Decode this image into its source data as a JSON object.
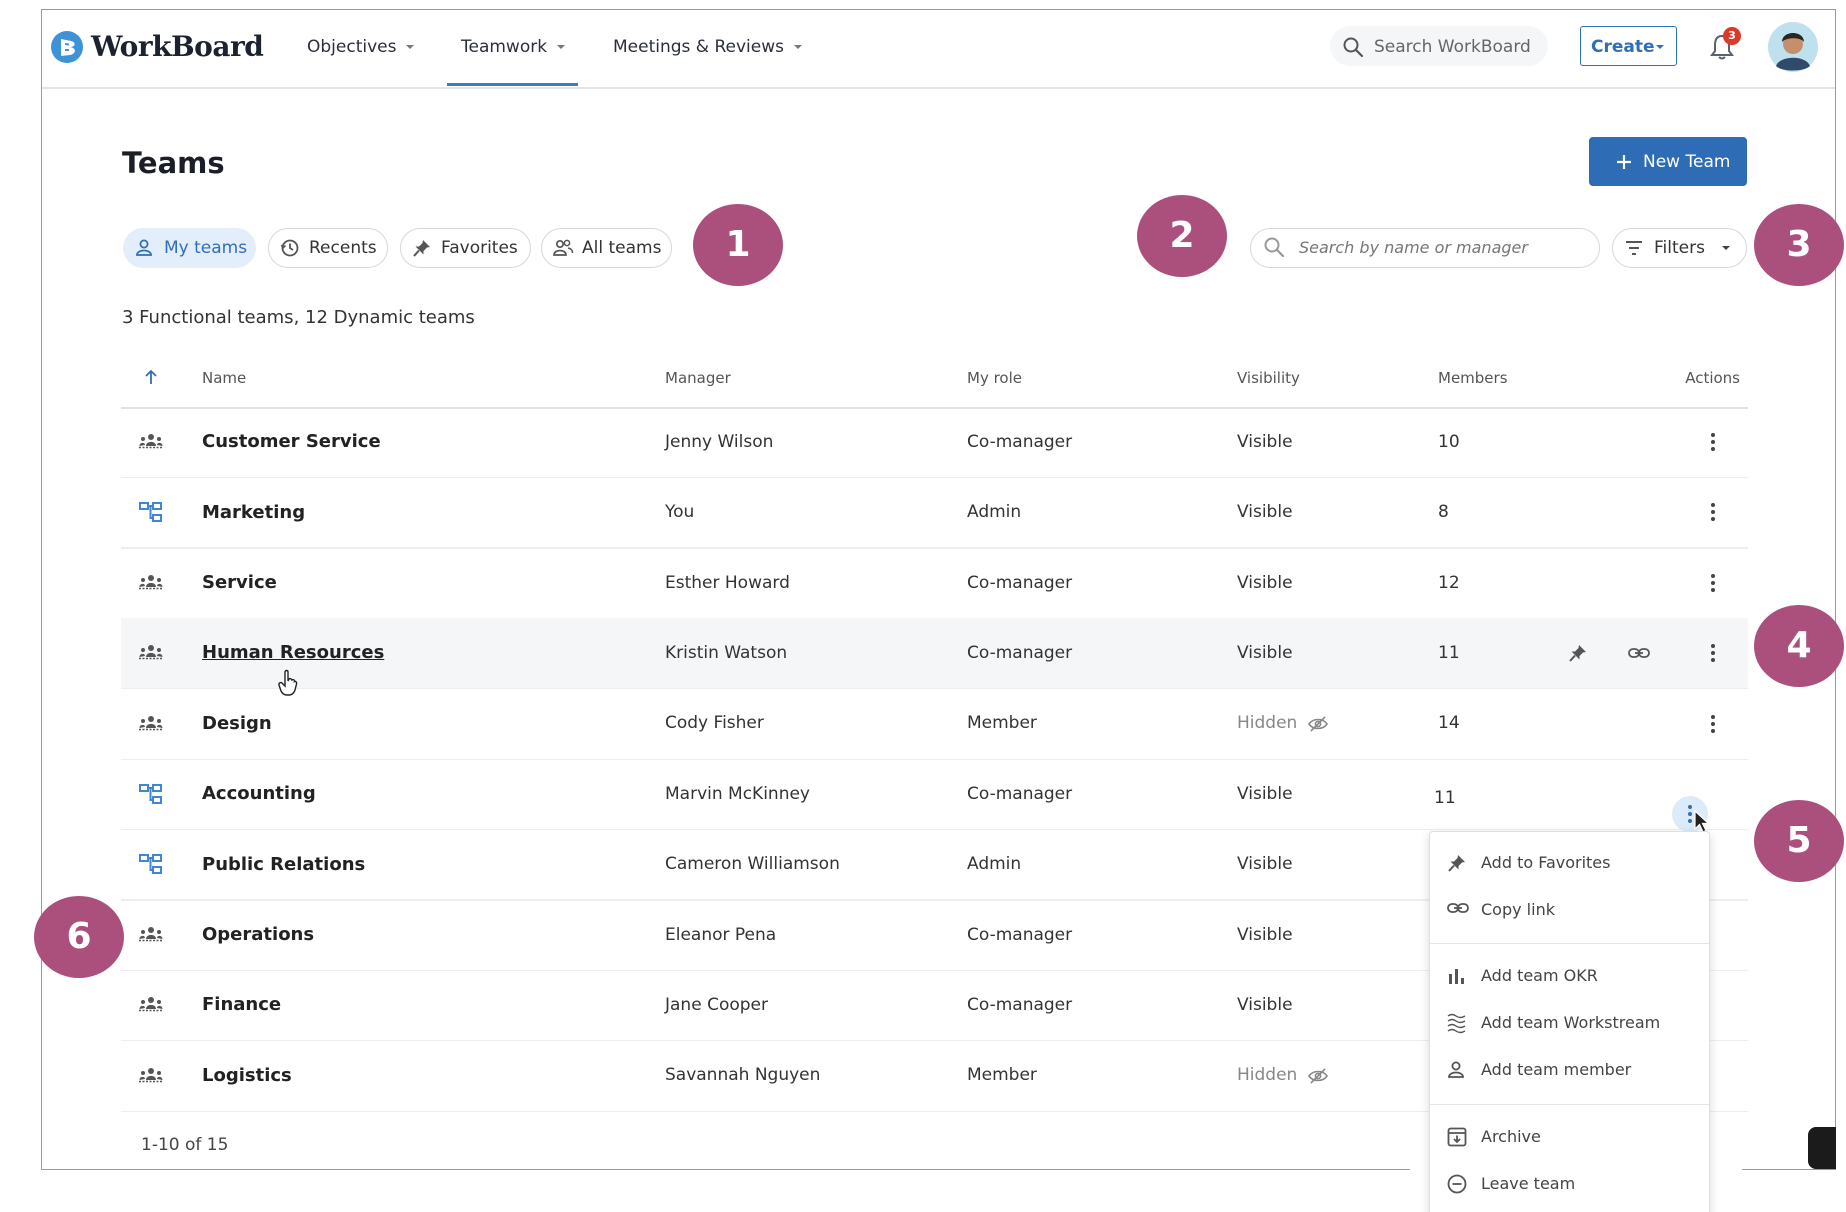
{
  "nav": {
    "logo": "WorkBoard",
    "menu": [
      "Objectives",
      "Teamwork",
      "Meetings & Reviews"
    ],
    "search": "Search WorkBoard",
    "create": "Create",
    "notifications": "3"
  },
  "page": {
    "title": "Teams",
    "new_team": "New Team",
    "tabs": [
      "My teams",
      "Recents",
      "Favorites",
      "All teams"
    ],
    "search_placeholder": "Search by name or manager",
    "filters": "Filters",
    "summary": "3 Functional teams, 12 Dynamic teams"
  },
  "table": {
    "headers": [
      "Name",
      "Manager",
      "My role",
      "Visibility",
      "Members",
      "Actions"
    ],
    "rows": [
      {
        "name": "Customer Service",
        "manager": "Jenny Wilson",
        "role": "Co-manager",
        "visibility": "Visible",
        "members": "10",
        "functional": false,
        "hidden": false
      },
      {
        "name": "Marketing",
        "manager": "You",
        "role": "Admin",
        "visibility": "Visible",
        "members": "8",
        "functional": true,
        "hidden": false
      },
      {
        "name": "Service",
        "manager": "Esther Howard",
        "role": "Co-manager",
        "visibility": "Visible",
        "members": "12",
        "functional": false,
        "hidden": false
      },
      {
        "name": "Human Resources",
        "manager": "Kristin Watson",
        "role": "Co-manager",
        "visibility": "Visible",
        "members": "11",
        "functional": false,
        "hidden": false
      },
      {
        "name": "Design",
        "manager": "Cody Fisher",
        "role": "Member",
        "visibility": "Hidden",
        "members": "14",
        "functional": false,
        "hidden": true
      },
      {
        "name": "Accounting",
        "manager": "Marvin McKinney",
        "role": "Co-manager",
        "visibility": "Visible",
        "members": "11",
        "functional": true,
        "hidden": false
      },
      {
        "name": "Public Relations",
        "manager": "Cameron Williamson",
        "role": "Admin",
        "visibility": "Visible",
        "members": "",
        "functional": true,
        "hidden": false
      },
      {
        "name": "Operations",
        "manager": "Eleanor Pena",
        "role": "Co-manager",
        "visibility": "Visible",
        "members": "",
        "functional": false,
        "hidden": false
      },
      {
        "name": "Finance",
        "manager": "Jane Cooper",
        "role": "Co-manager",
        "visibility": "Visible",
        "members": "",
        "functional": false,
        "hidden": false
      },
      {
        "name": "Logistics",
        "manager": "Savannah Nguyen",
        "role": "Member",
        "visibility": "Hidden",
        "members": "",
        "functional": false,
        "hidden": true
      }
    ],
    "pagination": "1-10 of 15"
  },
  "menu": [
    "Add to Favorites",
    "Copy link",
    "Add team OKR",
    "Add team Workstream",
    "Add team member",
    "Archive",
    "Leave team"
  ],
  "callouts": [
    "1",
    "2",
    "3",
    "4",
    "5",
    "6"
  ]
}
